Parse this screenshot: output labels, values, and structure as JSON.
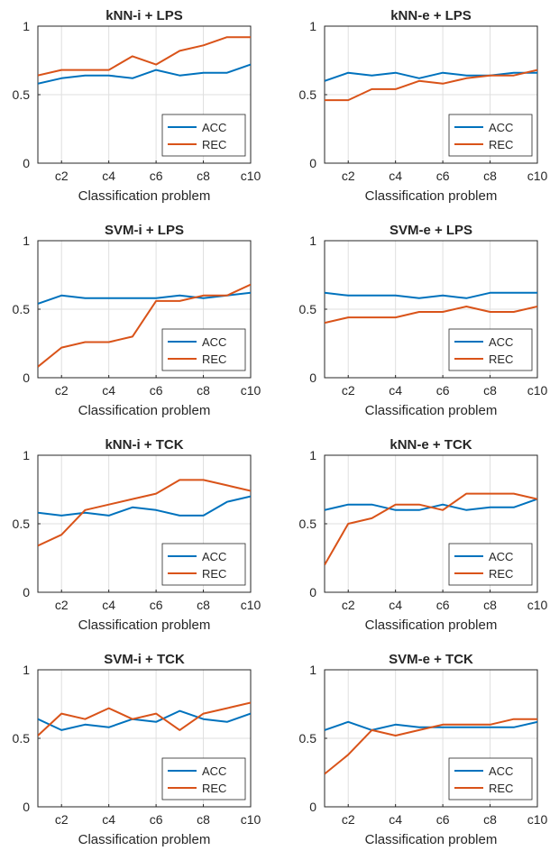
{
  "colors": {
    "acc": "#0072bd",
    "rec": "#d95319"
  },
  "chart_data": [
    {
      "type": "line",
      "title": "kNN-i + LPS",
      "xlabel": "Classification problem",
      "ylabel": "",
      "ylim": [
        0,
        1
      ],
      "grid": true,
      "legend_position": "bottom-right",
      "x": [
        "c1",
        "c2",
        "c3",
        "c4",
        "c5",
        "c6",
        "c7",
        "c8",
        "c9",
        "c10"
      ],
      "x_tick_labels": [
        "c2",
        "c4",
        "c6",
        "c8",
        "c10"
      ],
      "y_ticks": [
        "0",
        "0.5",
        "1"
      ],
      "series": [
        {
          "name": "ACC",
          "values": [
            0.58,
            0.62,
            0.64,
            0.64,
            0.62,
            0.68,
            0.64,
            0.66,
            0.66,
            0.72
          ]
        },
        {
          "name": "REC",
          "values": [
            0.64,
            0.68,
            0.68,
            0.68,
            0.78,
            0.72,
            0.82,
            0.86,
            0.92,
            0.92
          ]
        }
      ]
    },
    {
      "type": "line",
      "title": "kNN-e + LPS",
      "xlabel": "Classification problem",
      "ylabel": "",
      "ylim": [
        0,
        1
      ],
      "grid": true,
      "legend_position": "bottom-right",
      "x": [
        "c1",
        "c2",
        "c3",
        "c4",
        "c5",
        "c6",
        "c7",
        "c8",
        "c9",
        "c10"
      ],
      "x_tick_labels": [
        "c2",
        "c4",
        "c6",
        "c8",
        "c10"
      ],
      "y_ticks": [
        "0",
        "0.5",
        "1"
      ],
      "series": [
        {
          "name": "ACC",
          "values": [
            0.6,
            0.66,
            0.64,
            0.66,
            0.62,
            0.66,
            0.64,
            0.64,
            0.66,
            0.66
          ]
        },
        {
          "name": "REC",
          "values": [
            0.46,
            0.46,
            0.54,
            0.54,
            0.6,
            0.58,
            0.62,
            0.64,
            0.64,
            0.68
          ]
        }
      ]
    },
    {
      "type": "line",
      "title": "SVM-i + LPS",
      "xlabel": "Classification problem",
      "ylabel": "",
      "ylim": [
        0,
        1
      ],
      "grid": true,
      "legend_position": "bottom-right",
      "x": [
        "c1",
        "c2",
        "c3",
        "c4",
        "c5",
        "c6",
        "c7",
        "c8",
        "c9",
        "c10"
      ],
      "x_tick_labels": [
        "c2",
        "c4",
        "c6",
        "c8",
        "c10"
      ],
      "y_ticks": [
        "0",
        "0.5",
        "1"
      ],
      "series": [
        {
          "name": "ACC",
          "values": [
            0.54,
            0.6,
            0.58,
            0.58,
            0.58,
            0.58,
            0.6,
            0.58,
            0.6,
            0.62
          ]
        },
        {
          "name": "REC",
          "values": [
            0.08,
            0.22,
            0.26,
            0.26,
            0.3,
            0.56,
            0.56,
            0.6,
            0.6,
            0.68
          ]
        }
      ]
    },
    {
      "type": "line",
      "title": "SVM-e + LPS",
      "xlabel": "Classification problem",
      "ylabel": "",
      "ylim": [
        0,
        1
      ],
      "grid": true,
      "legend_position": "bottom-right",
      "x": [
        "c1",
        "c2",
        "c3",
        "c4",
        "c5",
        "c6",
        "c7",
        "c8",
        "c9",
        "c10"
      ],
      "x_tick_labels": [
        "c2",
        "c4",
        "c6",
        "c8",
        "c10"
      ],
      "y_ticks": [
        "0",
        "0.5",
        "1"
      ],
      "series": [
        {
          "name": "ACC",
          "values": [
            0.62,
            0.6,
            0.6,
            0.6,
            0.58,
            0.6,
            0.58,
            0.62,
            0.62,
            0.62
          ]
        },
        {
          "name": "REC",
          "values": [
            0.4,
            0.44,
            0.44,
            0.44,
            0.48,
            0.48,
            0.52,
            0.48,
            0.48,
            0.52
          ]
        }
      ]
    },
    {
      "type": "line",
      "title": "kNN-i + TCK",
      "xlabel": "Classification problem",
      "ylabel": "",
      "ylim": [
        0,
        1
      ],
      "grid": true,
      "legend_position": "bottom-right",
      "x": [
        "c1",
        "c2",
        "c3",
        "c4",
        "c5",
        "c6",
        "c7",
        "c8",
        "c9",
        "c10"
      ],
      "x_tick_labels": [
        "c2",
        "c4",
        "c6",
        "c8",
        "c10"
      ],
      "y_ticks": [
        "0",
        "0.5",
        "1"
      ],
      "series": [
        {
          "name": "ACC",
          "values": [
            0.58,
            0.56,
            0.58,
            0.56,
            0.62,
            0.6,
            0.56,
            0.56,
            0.66,
            0.7
          ]
        },
        {
          "name": "REC",
          "values": [
            0.34,
            0.42,
            0.6,
            0.64,
            0.68,
            0.72,
            0.82,
            0.82,
            0.78,
            0.74
          ]
        }
      ]
    },
    {
      "type": "line",
      "title": "kNN-e + TCK",
      "xlabel": "Classification problem",
      "ylabel": "",
      "ylim": [
        0,
        1
      ],
      "grid": true,
      "legend_position": "bottom-right",
      "x": [
        "c1",
        "c2",
        "c3",
        "c4",
        "c5",
        "c6",
        "c7",
        "c8",
        "c9",
        "c10"
      ],
      "x_tick_labels": [
        "c2",
        "c4",
        "c6",
        "c8",
        "c10"
      ],
      "y_ticks": [
        "0",
        "0.5",
        "1"
      ],
      "series": [
        {
          "name": "ACC",
          "values": [
            0.6,
            0.64,
            0.64,
            0.6,
            0.6,
            0.64,
            0.6,
            0.62,
            0.62,
            0.68
          ]
        },
        {
          "name": "REC",
          "values": [
            0.2,
            0.5,
            0.54,
            0.64,
            0.64,
            0.6,
            0.72,
            0.72,
            0.72,
            0.68
          ]
        }
      ]
    },
    {
      "type": "line",
      "title": "SVM-i + TCK",
      "xlabel": "Classification problem",
      "ylabel": "",
      "ylim": [
        0,
        1
      ],
      "grid": true,
      "legend_position": "bottom-right",
      "x": [
        "c1",
        "c2",
        "c3",
        "c4",
        "c5",
        "c6",
        "c7",
        "c8",
        "c9",
        "c10"
      ],
      "x_tick_labels": [
        "c2",
        "c4",
        "c6",
        "c8",
        "c10"
      ],
      "y_ticks": [
        "0",
        "0.5",
        "1"
      ],
      "series": [
        {
          "name": "ACC",
          "values": [
            0.64,
            0.56,
            0.6,
            0.58,
            0.64,
            0.62,
            0.7,
            0.64,
            0.62,
            0.68
          ]
        },
        {
          "name": "REC",
          "values": [
            0.52,
            0.68,
            0.64,
            0.72,
            0.64,
            0.68,
            0.56,
            0.68,
            0.72,
            0.76
          ]
        }
      ]
    },
    {
      "type": "line",
      "title": "SVM-e + TCK",
      "xlabel": "Classification problem",
      "ylabel": "",
      "ylim": [
        0,
        1
      ],
      "grid": true,
      "legend_position": "bottom-right",
      "x": [
        "c1",
        "c2",
        "c3",
        "c4",
        "c5",
        "c6",
        "c7",
        "c8",
        "c9",
        "c10"
      ],
      "x_tick_labels": [
        "c2",
        "c4",
        "c6",
        "c8",
        "c10"
      ],
      "y_ticks": [
        "0",
        "0.5",
        "1"
      ],
      "series": [
        {
          "name": "ACC",
          "values": [
            0.56,
            0.62,
            0.56,
            0.6,
            0.58,
            0.58,
            0.58,
            0.58,
            0.58,
            0.62
          ]
        },
        {
          "name": "REC",
          "values": [
            0.24,
            0.38,
            0.56,
            0.52,
            0.56,
            0.6,
            0.6,
            0.6,
            0.64,
            0.64
          ]
        }
      ]
    }
  ]
}
